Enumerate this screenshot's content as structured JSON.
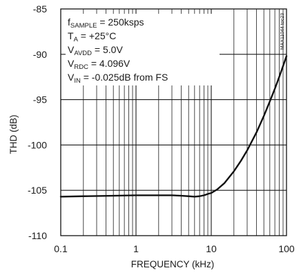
{
  "chart_data": {
    "type": "line",
    "title": "",
    "xlabel": "FREQUENCY (kHz)",
    "ylabel": "THD (dB)",
    "xscale": "log",
    "xlim": [
      0.1,
      100
    ],
    "ylim": [
      -110,
      -85
    ],
    "x_ticks": [
      0.1,
      1,
      10,
      100
    ],
    "x_tick_labels": [
      "0.1",
      "1",
      "10",
      "100"
    ],
    "y_ticks": [
      -85,
      -90,
      -95,
      -100,
      -105,
      -110
    ],
    "y_tick_labels": [
      "-85",
      "-90",
      "-95",
      "-100",
      "-105",
      "-110"
    ],
    "grid": true,
    "series": [
      {
        "x": [
          0.1,
          0.2,
          0.5,
          1,
          2,
          3,
          4,
          5,
          6,
          7,
          8,
          9,
          10,
          12,
          15,
          20,
          25,
          30,
          40,
          50,
          60,
          70,
          80,
          90,
          100
        ],
        "y": [
          -105.7,
          -105.65,
          -105.6,
          -105.55,
          -105.55,
          -105.55,
          -105.6,
          -105.65,
          -105.7,
          -105.65,
          -105.55,
          -105.4,
          -105.3,
          -104.9,
          -104.2,
          -102.9,
          -101.7,
          -100.6,
          -98.6,
          -96.8,
          -95.2,
          -93.8,
          -92.5,
          -91.3,
          -90.2
        ]
      }
    ],
    "annotations": [
      {
        "main": "f",
        "sub": "SAMPLE",
        "rest": " = 250ksps"
      },
      {
        "main": "T",
        "sub": "A",
        "rest": " = +25°C"
      },
      {
        "main": "V",
        "sub": "AVDD",
        "rest": " = 5.0V"
      },
      {
        "main": "V",
        "sub": "RDC",
        "rest": " = 4.096V"
      },
      {
        "main": "V",
        "sub": "IN",
        "rest": " = -0.025dB from FS"
      }
    ],
    "figure_code": "MAX11044 toc23",
    "colors": {
      "curve": "#111111",
      "grid": "#1a1a1a",
      "background": "#ffffff"
    }
  }
}
